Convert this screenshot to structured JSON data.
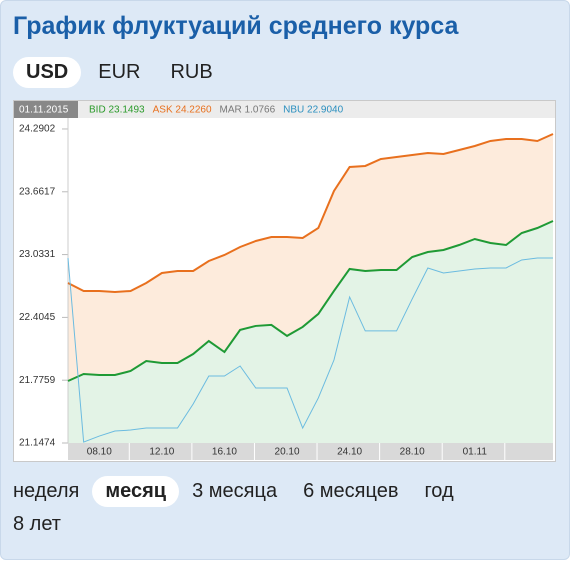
{
  "title": "График флуктуаций среднего курса",
  "currency_tabs": [
    {
      "label": "USD",
      "selected": true
    },
    {
      "label": "EUR",
      "selected": false
    },
    {
      "label": "RUB",
      "selected": false
    }
  ],
  "period_tabs": [
    {
      "label": "неделя",
      "selected": false
    },
    {
      "label": "месяц",
      "selected": true
    },
    {
      "label": "3 месяца",
      "selected": false
    },
    {
      "label": "6 месяцев",
      "selected": false
    },
    {
      "label": "год",
      "selected": false
    },
    {
      "label": "8 лет",
      "selected": false
    }
  ],
  "chart_data": {
    "type": "line",
    "date": "01.11.2015",
    "legend": [
      "BID 23.1493",
      "ASK 24.2260",
      "MAR 1.0766",
      "NBU 22.9040"
    ],
    "legend_colors": [
      "#2a9a2a",
      "#e8701e",
      "#777777",
      "#2a8fbf"
    ],
    "categories": [
      null,
      null,
      "08.10",
      null,
      null,
      null,
      "12.10",
      null,
      null,
      null,
      "16.10",
      null,
      null,
      null,
      "20.10",
      null,
      null,
      null,
      "24.10",
      null,
      null,
      null,
      "28.10",
      null,
      null,
      null,
      "01.11",
      null,
      null,
      null,
      null,
      null
    ],
    "series": [
      {
        "color": "#e8701e",
        "fill": "#fdebdc",
        "values": [
          22.749,
          22.669,
          22.669,
          22.659,
          22.669,
          22.749,
          22.849,
          22.869,
          22.869,
          22.969,
          23.029,
          23.109,
          23.169,
          23.209,
          23.209,
          23.199,
          23.299,
          23.67,
          23.91,
          23.92,
          23.99,
          24.01,
          24.03,
          24.05,
          24.04,
          24.08,
          24.12,
          24.17,
          24.19,
          24.19,
          24.17,
          24.24
        ]
      },
      {
        "color": "#1f9a35",
        "fill": "#e3f3e6",
        "values": [
          21.768,
          21.838,
          21.828,
          21.828,
          21.868,
          21.968,
          21.948,
          21.948,
          22.038,
          22.168,
          22.058,
          22.279,
          22.319,
          22.329,
          22.219,
          22.309,
          22.439,
          22.669,
          22.889,
          22.869,
          22.879,
          22.879,
          23.009,
          23.059,
          23.079,
          23.129,
          23.189,
          23.149,
          23.129,
          23.249,
          23.299,
          23.369
        ]
      },
      {
        "color": "#6bbbe0",
        "values": [
          22.999,
          21.157,
          21.217,
          21.267,
          21.277,
          21.297,
          21.297,
          21.297,
          21.538,
          21.818,
          21.818,
          21.918,
          21.698,
          21.698,
          21.698,
          21.297,
          21.598,
          21.978,
          22.609,
          22.269,
          22.269,
          22.269,
          22.589,
          22.899,
          22.849,
          22.869,
          22.889,
          22.899,
          22.899,
          22.979,
          22.999,
          22.999
        ]
      }
    ],
    "ylim": [
      21.1474,
      24.4
    ],
    "yticks": [
      21.1474,
      21.7759,
      22.4045,
      23.0331,
      23.6617,
      24.2902
    ]
  }
}
